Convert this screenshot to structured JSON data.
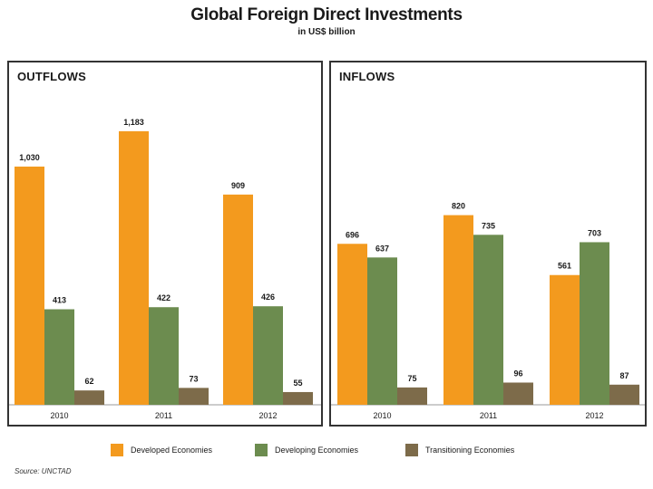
{
  "title": "Global Foreign Direct Investments",
  "subtitle": "in US$ billion",
  "source": "Source: UNCTAD",
  "colors": {
    "Developed Economies": "#f39a1e",
    "Developing Economies": "#6c8c4f",
    "Transitioning Economies": "#7d6b4a"
  },
  "legend": [
    "Developed Economies",
    "Developing Economies",
    "Transitioning Economies"
  ],
  "chart_data": [
    {
      "type": "bar",
      "title": "OUTFLOWS",
      "categories": [
        "2010",
        "2011",
        "2012"
      ],
      "series": [
        {
          "name": "Developed Economies",
          "values": [
            1030,
            1183,
            909
          ],
          "labels": [
            "1,030",
            "1,183",
            "909"
          ]
        },
        {
          "name": "Developing Economies",
          "values": [
            413,
            422,
            426
          ],
          "labels": [
            "413",
            "422",
            "426"
          ]
        },
        {
          "name": "Transitioning Economies",
          "values": [
            62,
            73,
            55
          ],
          "labels": [
            "62",
            "73",
            "55"
          ]
        }
      ],
      "ylim": [
        0,
        1300
      ],
      "grid": false
    },
    {
      "type": "bar",
      "title": "INFLOWS",
      "categories": [
        "2010",
        "2011",
        "2012"
      ],
      "series": [
        {
          "name": "Developed Economies",
          "values": [
            696,
            820,
            561
          ],
          "labels": [
            "696",
            "820",
            "561"
          ]
        },
        {
          "name": "Developing Economies",
          "values": [
            637,
            735,
            703
          ],
          "labels": [
            "637",
            "735",
            "703"
          ]
        },
        {
          "name": "Transitioning Economies",
          "values": [
            75,
            96,
            87
          ],
          "labels": [
            "75",
            "96",
            "87"
          ]
        }
      ],
      "ylim": [
        0,
        1300
      ],
      "grid": false
    }
  ]
}
